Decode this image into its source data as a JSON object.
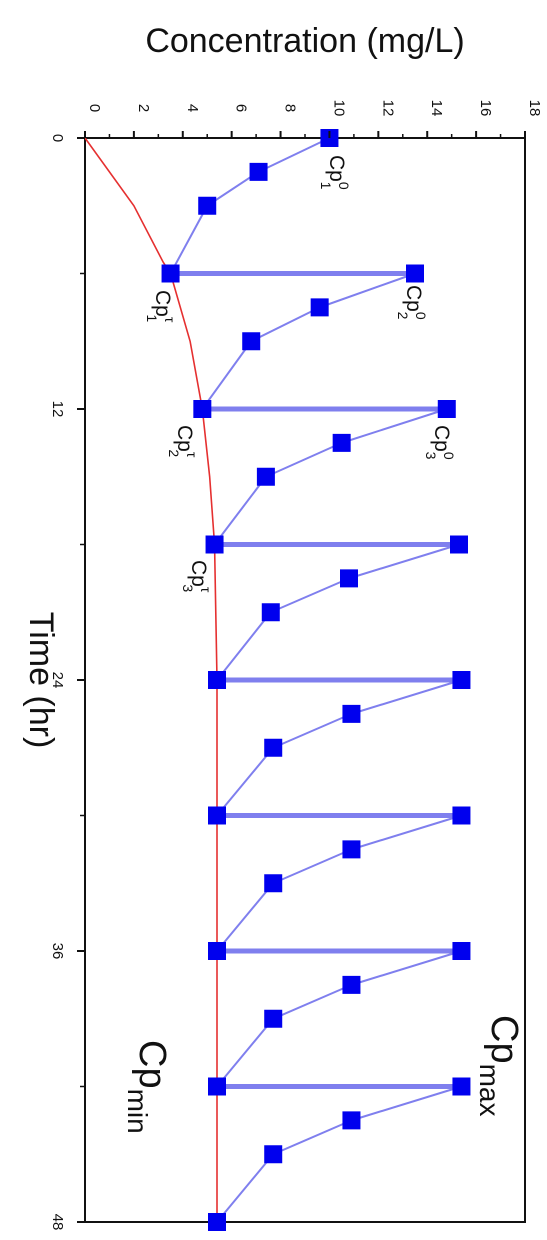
{
  "chart_data": {
    "type": "line",
    "xlabel": "Time (hr)",
    "ylabel": "Concentration (mg/L)",
    "xlim": [
      0,
      48
    ],
    "ylim": [
      0,
      18
    ],
    "x_ticks": [
      "0",
      "12",
      "24",
      "36",
      "48"
    ],
    "y_ticks": [
      "0",
      "2",
      "4",
      "6",
      "8",
      "10",
      "12",
      "14",
      "16",
      "18"
    ],
    "colors": {
      "doses": "#0000ee",
      "dose_line": "#7f7fee",
      "trough": "#e53030",
      "axes": "#111111"
    },
    "series": [
      {
        "x": [
          0,
          1.5,
          3,
          6,
          6,
          7.5,
          9,
          12,
          12,
          13.5,
          15,
          18,
          18,
          19.5,
          21,
          24,
          24,
          25.5,
          27,
          30,
          30,
          31.5,
          33,
          36,
          36,
          37.5,
          39,
          42,
          42,
          43.5,
          45,
          48
        ],
        "y": [
          10.0,
          7.1,
          5.0,
          3.5,
          13.5,
          9.6,
          6.8,
          4.8,
          14.8,
          10.5,
          7.4,
          5.3,
          15.3,
          10.8,
          7.6,
          5.4,
          15.4,
          10.9,
          7.7,
          5.4,
          15.4,
          10.9,
          7.7,
          5.4,
          15.4,
          10.9,
          7.7,
          5.4,
          15.4,
          10.9,
          7.7,
          5.4
        ]
      },
      {
        "x": [
          0,
          3,
          5.5,
          6,
          9,
          12,
          15,
          18,
          21,
          24,
          30,
          36,
          42,
          48
        ],
        "y": [
          0,
          2.0,
          3.2,
          3.5,
          4.3,
          4.8,
          5.1,
          5.3,
          5.35,
          5.4,
          5.4,
          5.4,
          5.4,
          5.4
        ]
      }
    ],
    "annotations": {
      "cp0_1": {
        "base": "Cp",
        "sup": "0",
        "sub": "1"
      },
      "cp0_2": {
        "base": "Cp",
        "sup": "0",
        "sub": "2"
      },
      "cp0_3": {
        "base": "Cp",
        "sup": "0",
        "sub": "3"
      },
      "cpt_1": {
        "base": "Cp",
        "sup": "τ",
        "sub": "1"
      },
      "cpt_2": {
        "base": "Cp",
        "sup": "τ",
        "sub": "2"
      },
      "cpt_3": {
        "base": "Cp",
        "sup": "τ",
        "sub": "3"
      },
      "cpmax": {
        "base": "Cp",
        "sub": "max"
      },
      "cpmin": {
        "base": "Cp",
        "sub": "min"
      }
    }
  }
}
